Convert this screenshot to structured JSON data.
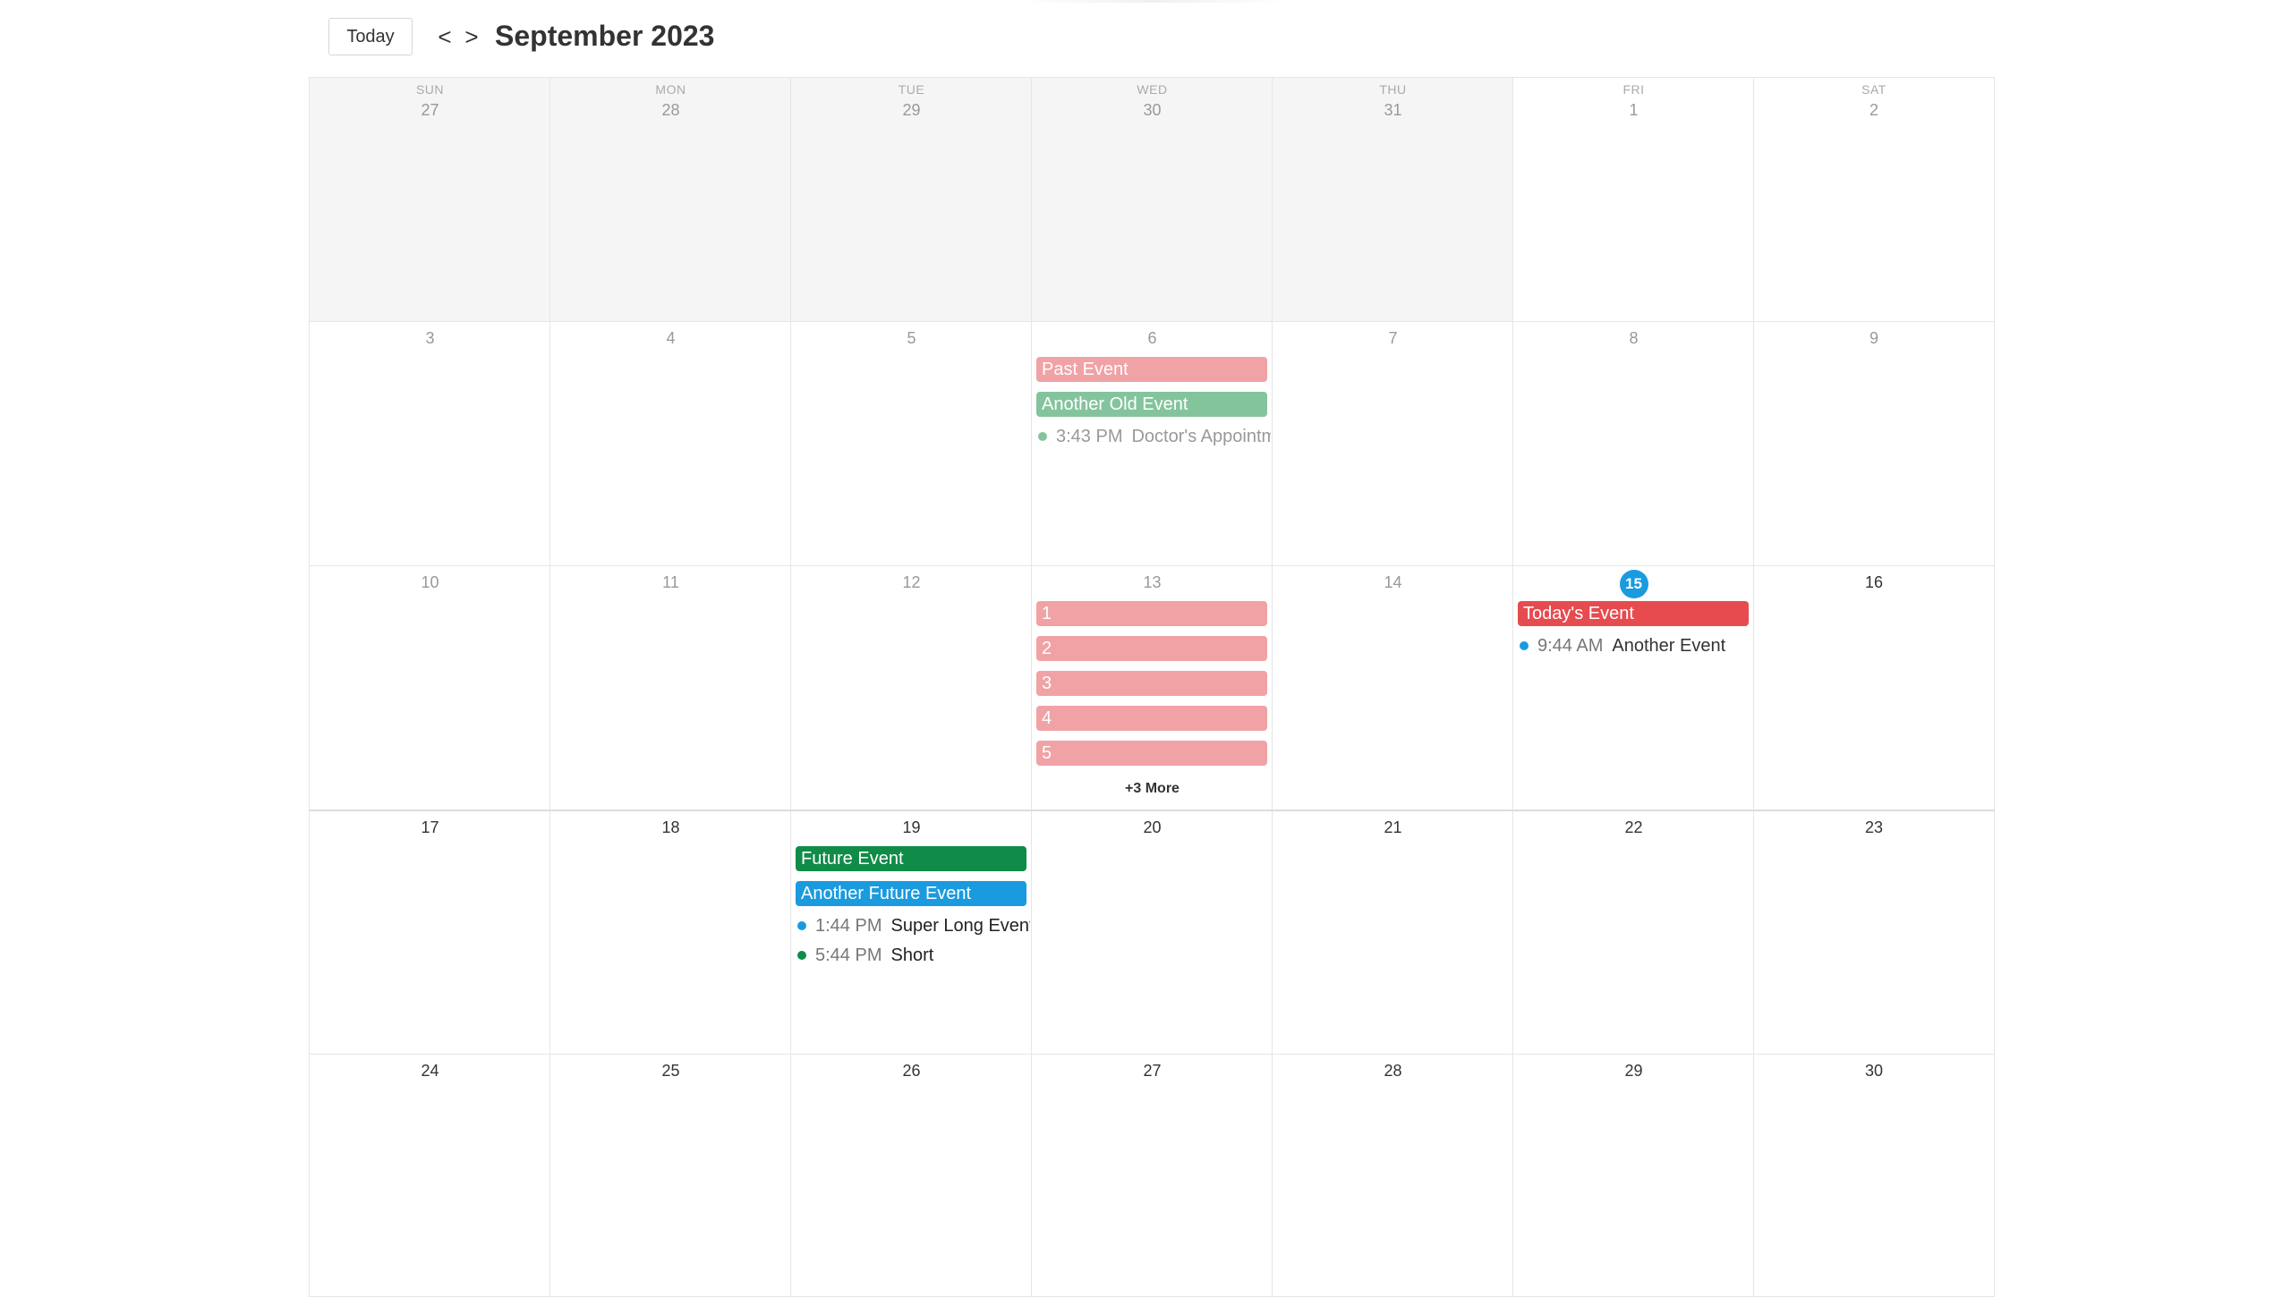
{
  "toolbar": {
    "today_label": "Today",
    "prev_label": "<",
    "next_label": ">",
    "title": "September 2023"
  },
  "weekdays": [
    "SUN",
    "MON",
    "TUE",
    "WED",
    "THU",
    "FRI",
    "SAT"
  ],
  "weeks": [
    [
      "27",
      "28",
      "29",
      "30",
      "31",
      "1",
      "2"
    ],
    [
      "3",
      "4",
      "5",
      "6",
      "7",
      "8",
      "9"
    ],
    [
      "10",
      "11",
      "12",
      "13",
      "14",
      "15",
      "16"
    ],
    [
      "17",
      "18",
      "19",
      "20",
      "21",
      "22",
      "23"
    ],
    [
      "24",
      "25",
      "26",
      "27",
      "28",
      "29",
      "30"
    ]
  ],
  "colors": {
    "past_pink": "#f0a2a5",
    "past_green": "#84c49d",
    "today_red": "#e64b4f",
    "future_green": "#108c48",
    "future_blue": "#1a9be0",
    "today_highlight": "#1a9be0"
  },
  "events": {
    "sep6": [
      {
        "title": "Past Event"
      },
      {
        "title": "Another Old Event"
      },
      {
        "time": "3:43 PM",
        "title": "Doctor's Appointment"
      }
    ],
    "sep13": [
      {
        "title": "1"
      },
      {
        "title": "2"
      },
      {
        "title": "3"
      },
      {
        "title": "4"
      },
      {
        "title": "5"
      }
    ],
    "sep13_more": "+3 More",
    "sep15": [
      {
        "title": "Today's Event"
      },
      {
        "time": "9:44 AM",
        "title": "Another Event"
      }
    ],
    "sep19": [
      {
        "title": "Future Event"
      },
      {
        "title": "Another Future Event"
      },
      {
        "time": "1:44 PM",
        "title": "Super Long Event Name"
      },
      {
        "time": "5:44 PM",
        "title": "Short"
      }
    ]
  }
}
